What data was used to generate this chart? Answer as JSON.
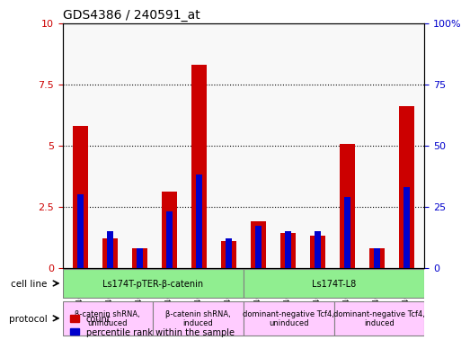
{
  "title": "GDS4386 / 240591_at",
  "samples": [
    "GSM461942",
    "GSM461947",
    "GSM461949",
    "GSM461946",
    "GSM461948",
    "GSM461950",
    "GSM461944",
    "GSM461951",
    "GSM461953",
    "GSM461943",
    "GSM461945",
    "GSM461952"
  ],
  "count_values": [
    5.8,
    1.2,
    0.8,
    3.1,
    8.3,
    1.1,
    1.9,
    1.4,
    1.3,
    5.05,
    0.8,
    6.6
  ],
  "percentile_values": [
    30,
    15,
    8,
    23,
    38,
    12,
    17,
    15,
    15,
    29,
    8,
    33
  ],
  "ylim_left": [
    0,
    10
  ],
  "ylim_right": [
    0,
    100
  ],
  "yticks_left": [
    0,
    2.5,
    5,
    7.5,
    10
  ],
  "yticks_right": [
    0,
    25,
    50,
    75,
    100
  ],
  "bar_color_red": "#cc0000",
  "bar_color_blue": "#0000cc",
  "grid_color": "#000000",
  "bg_color": "#ffffff",
  "plot_bg": "#f0f0f0",
  "cell_line_groups": [
    {
      "label": "Ls174T-pTER-β-catenin",
      "start": 0,
      "end": 6,
      "color": "#90ee90"
    },
    {
      "label": "Ls174T-L8",
      "start": 6,
      "end": 12,
      "color": "#90ee90"
    }
  ],
  "protocol_groups": [
    {
      "label": "β-catenin shRNA,\nuninduced",
      "start": 0,
      "end": 3,
      "color": "#ffccff"
    },
    {
      "label": "β-catenin shRNA,\ninduced",
      "start": 3,
      "end": 6,
      "color": "#ffccff"
    },
    {
      "label": "dominant-negative Tcf4,\nuninduced",
      "start": 6,
      "end": 9,
      "color": "#ffccff"
    },
    {
      "label": "dominant-negative Tcf4,\ninduced",
      "start": 9,
      "end": 12,
      "color": "#ffccff"
    }
  ],
  "bar_width": 0.5,
  "blue_bar_width": 0.2
}
